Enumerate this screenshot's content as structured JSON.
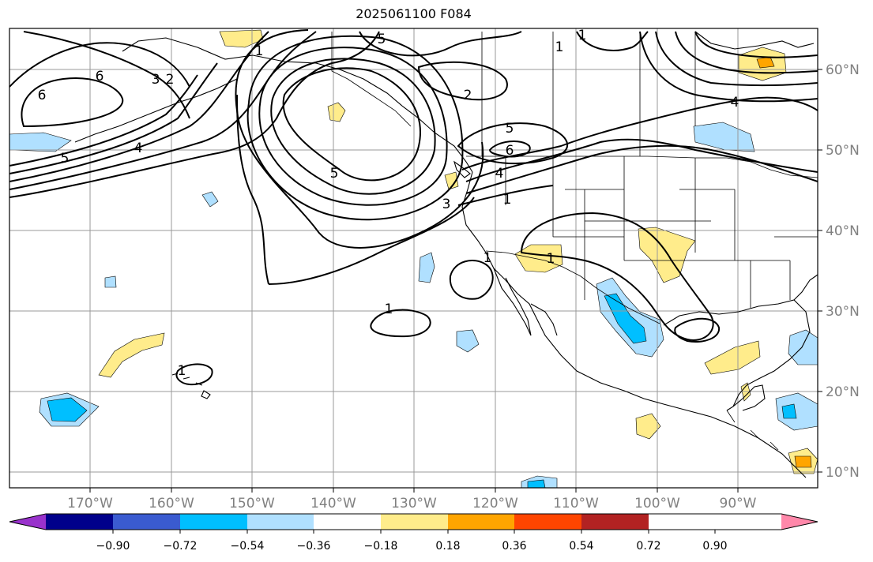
{
  "title": "2025061100 F084",
  "map": {
    "longitude_labels": [
      "170°W",
      "160°W",
      "150°W",
      "140°W",
      "130°W",
      "120°W",
      "110°W",
      "100°W",
      "90°W"
    ],
    "latitude_labels": [
      "60°N",
      "50°N",
      "40°N",
      "30°N",
      "20°N",
      "10°N"
    ],
    "contour_labels": [
      "1",
      "5",
      "6",
      "3",
      "2",
      "1",
      "6",
      "5",
      "4",
      "2",
      "1",
      "5",
      "6",
      "4",
      "1",
      "3",
      "5",
      "1",
      "1",
      "1",
      "1",
      "4"
    ]
  },
  "colorbar": {
    "tick_labels": [
      "−0.90",
      "−0.72",
      "−0.54",
      "−0.36",
      "−0.18",
      "0.18",
      "0.36",
      "0.54",
      "0.72",
      "0.90"
    ],
    "colors": [
      "#9932cc",
      "#00008b",
      "#3a5bd0",
      "#00bfff",
      "#b0e0ff",
      "#ffffff",
      "#ffec8b",
      "#ffa500",
      "#ff4500",
      "#b22222",
      "#ff88aa"
    ]
  }
}
